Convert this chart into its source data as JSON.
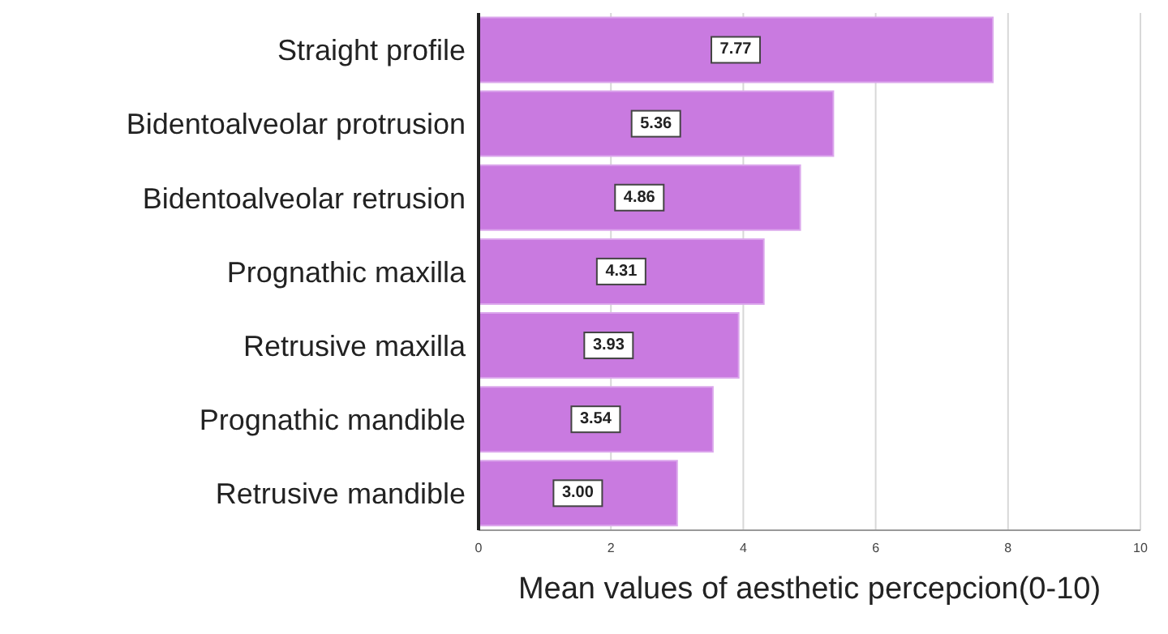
{
  "chart_data": {
    "type": "bar",
    "orientation": "horizontal",
    "xlabel": "Mean values of aesthetic percepcion(0-10)",
    "categories": [
      "Straight profile",
      "Bidentoalveolar protrusion",
      "Bidentoalveolar retrusion",
      "Prognathic maxilla",
      "Retrusive maxilla",
      "Prognathic mandible",
      "Retrusive mandible"
    ],
    "values": [
      7.77,
      5.36,
      4.86,
      4.31,
      3.93,
      3.54,
      3.0
    ],
    "value_labels": [
      "7.77",
      "5.36",
      "4.86",
      "4.31",
      "3.93",
      "3.54",
      "3.00"
    ],
    "color": "#c97ae0",
    "xlim": [
      0,
      10
    ],
    "xticks": [
      0,
      2,
      4,
      6,
      8,
      10
    ],
    "grid": "x"
  }
}
